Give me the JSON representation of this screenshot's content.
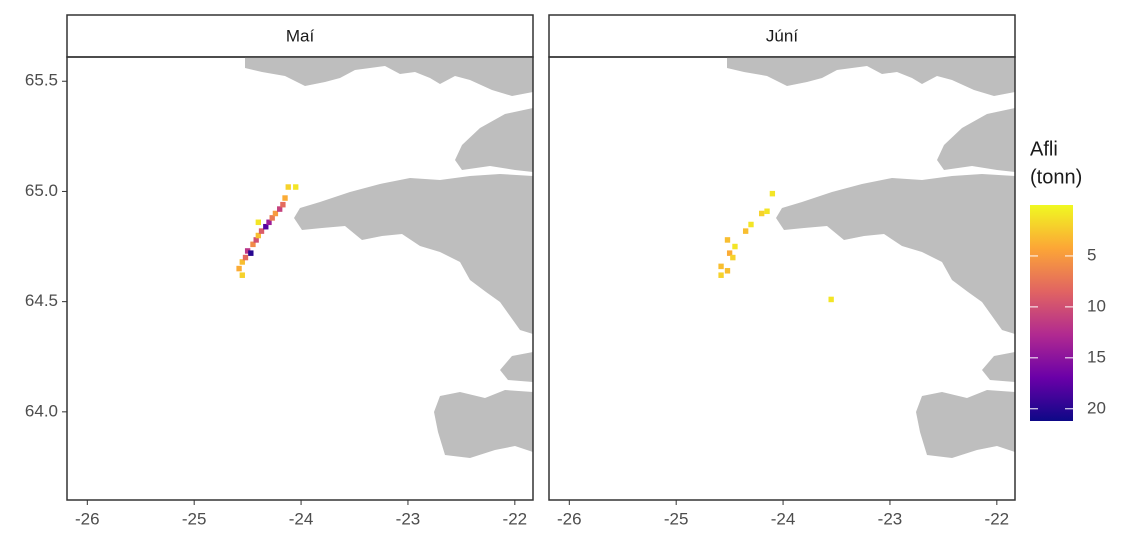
{
  "chart_data": {
    "type": "tile",
    "xlim": [
      -26.19,
      -21.83
    ],
    "ylim": [
      63.6,
      65.61
    ],
    "xticks": [
      -26,
      -25,
      -24,
      -23,
      -22
    ],
    "yticks": [
      {
        "value": 64,
        "label": "64.0"
      },
      64.5,
      {
        "value": 65,
        "label": "65.0"
      },
      65.5
    ],
    "land_color": "#bebebe",
    "legend_title": [
      "Afli",
      "(tonn)"
    ],
    "colorbar_lim": [
      0,
      21.2
    ],
    "colorbar_ticks": [
      5,
      10,
      15,
      20
    ],
    "colors": [
      "#f0f921",
      "#fca636",
      "#e16462",
      "#b12a90",
      "#6a00a8",
      "#0d0887"
    ],
    "facets": [
      {
        "title": "Maí",
        "x": [
          -24.58,
          -24.55,
          -24.52,
          -24.5,
          -24.47,
          -24.45,
          -24.42,
          -24.4,
          -24.37,
          -24.33,
          -24.3,
          -24.27,
          -24.24,
          -24.2,
          -24.17,
          -24.15,
          -24.12,
          -24.05,
          -24.55,
          -24.4
        ],
        "y": [
          64.65,
          64.68,
          64.7,
          64.73,
          64.72,
          64.76,
          64.78,
          64.8,
          64.82,
          64.84,
          64.86,
          64.88,
          64.9,
          64.92,
          64.94,
          64.97,
          65.02,
          65.02,
          64.62,
          64.86
        ],
        "values": [
          4,
          3,
          8,
          12,
          20,
          6,
          10,
          3,
          9,
          18,
          14,
          7,
          5,
          11,
          8,
          4,
          2,
          1,
          2,
          1
        ]
      },
      {
        "title": "Júní",
        "x": [
          -24.58,
          -24.58,
          -24.52,
          -24.5,
          -24.47,
          -24.52,
          -24.45,
          -24.35,
          -24.3,
          -24.2,
          -24.15,
          -24.1,
          -23.55
        ],
        "y": [
          64.62,
          64.66,
          64.64,
          64.72,
          64.7,
          64.78,
          64.75,
          64.82,
          64.85,
          64.9,
          64.91,
          64.99,
          64.51
        ],
        "values": [
          2,
          3,
          3,
          4,
          2,
          3,
          1,
          3,
          1,
          2,
          1,
          1,
          1
        ]
      }
    ]
  }
}
